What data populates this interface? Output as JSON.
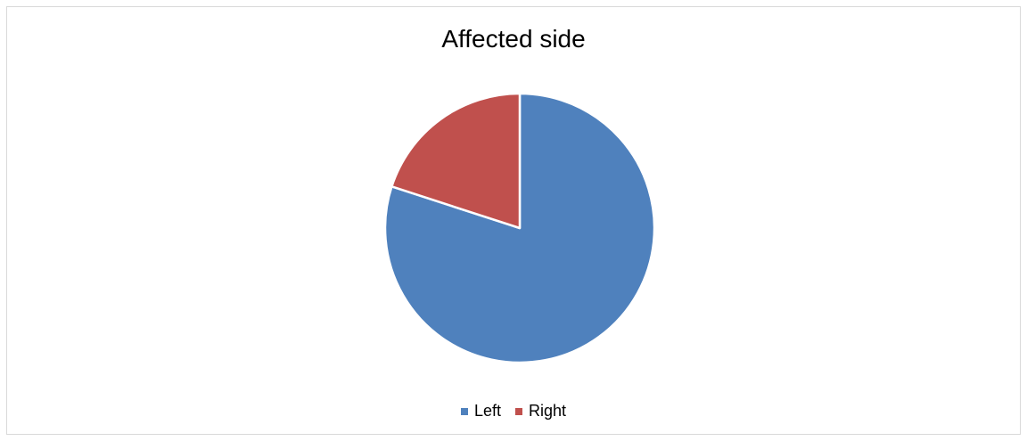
{
  "chart_data": {
    "type": "pie",
    "title": "Affected side",
    "categories": [
      "Left",
      "Right"
    ],
    "values": [
      80,
      20
    ],
    "colors": [
      "#4F81BD",
      "#C0504D"
    ],
    "start_angle_deg": 0,
    "direction": "clockwise",
    "legend_position": "bottom",
    "slice_border_color": "#ffffff"
  }
}
